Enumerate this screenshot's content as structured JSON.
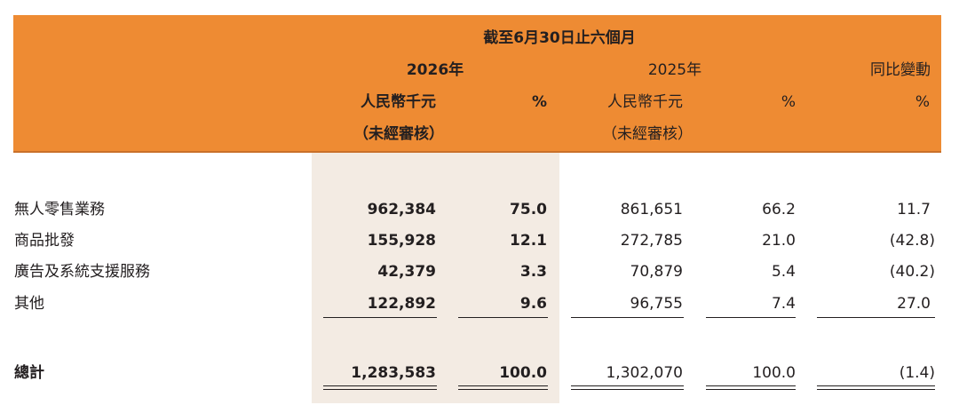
{
  "header": {
    "period": "截至6月30日止六個月",
    "year_2026": "2026年",
    "year_2025": "2025年",
    "yoy_change": "同比變動",
    "currency_2026": "人民幣千元",
    "pct_2026": "%",
    "currency_2025": "人民幣千元",
    "pct_2025": "%",
    "pct_change": "%",
    "unaudited_2026": "（未經審核）",
    "unaudited_2025": "（未經審核）"
  },
  "rows": [
    {
      "label": "無人零售業務",
      "v2026": "962,384",
      "p2026": "75.0",
      "v2025": "861,651",
      "p2025": "66.2",
      "change": "11.7"
    },
    {
      "label": "商品批發",
      "v2026": "155,928",
      "p2026": "12.1",
      "v2025": "272,785",
      "p2025": "21.0",
      "change": "(42.8)"
    },
    {
      "label": "廣告及系統支援服務",
      "v2026": "42,379",
      "p2026": "3.3",
      "v2025": "70,879",
      "p2025": "5.4",
      "change": "(40.2)"
    },
    {
      "label": "其他",
      "v2026": "122,892",
      "p2026": "9.6",
      "v2025": "96,755",
      "p2025": "7.4",
      "change": "27.0"
    }
  ],
  "total": {
    "label": "總計",
    "v2026": "1,283,583",
    "p2026": "100.0",
    "v2025": "1,302,070",
    "p2025": "100.0",
    "change": "(1.4)"
  },
  "colors": {
    "header_band": "#ee8b33",
    "shaded_column": "#f3ebe3",
    "text": "#231f20"
  }
}
